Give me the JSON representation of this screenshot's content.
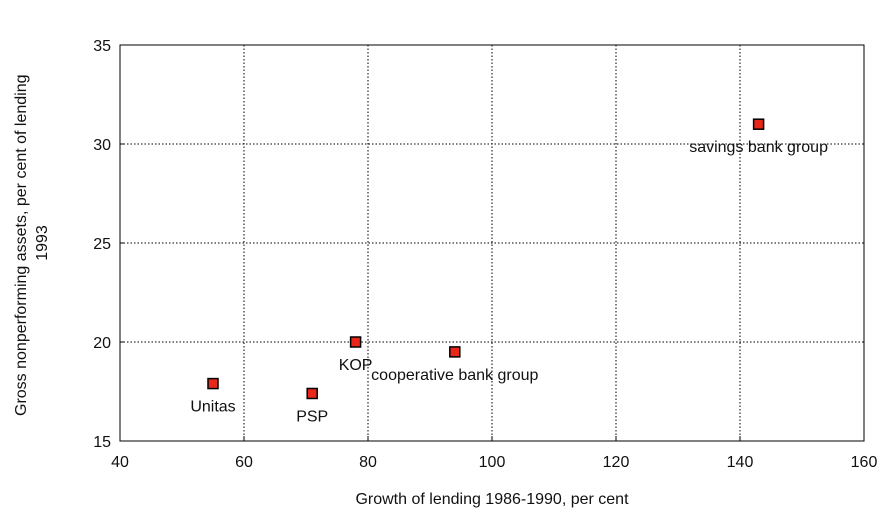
{
  "chart_data": {
    "type": "scatter",
    "title": "",
    "xlabel": "Growth of lending 1986-1990, per cent",
    "ylabel_lines": [
      "Gross nonperforming assets, per cent of lending",
      "1993"
    ],
    "xlim": [
      40,
      160
    ],
    "ylim": [
      15,
      35
    ],
    "xticks": [
      40,
      60,
      80,
      100,
      120,
      140,
      160
    ],
    "yticks": [
      15,
      20,
      25,
      30,
      35
    ],
    "grid": true,
    "marker_color": "#e8261a",
    "points": [
      {
        "label": "Unitas",
        "x": 55,
        "y": 17.9,
        "label_pos": "below"
      },
      {
        "label": "PSP",
        "x": 71,
        "y": 17.4,
        "label_pos": "below"
      },
      {
        "label": "KOP",
        "x": 78,
        "y": 20.0,
        "label_pos": "below"
      },
      {
        "label": "cooperative bank group",
        "x": 94,
        "y": 19.5,
        "label_pos": "below"
      },
      {
        "label": "savings bank group",
        "x": 143,
        "y": 31.0,
        "label_pos": "below"
      }
    ]
  }
}
